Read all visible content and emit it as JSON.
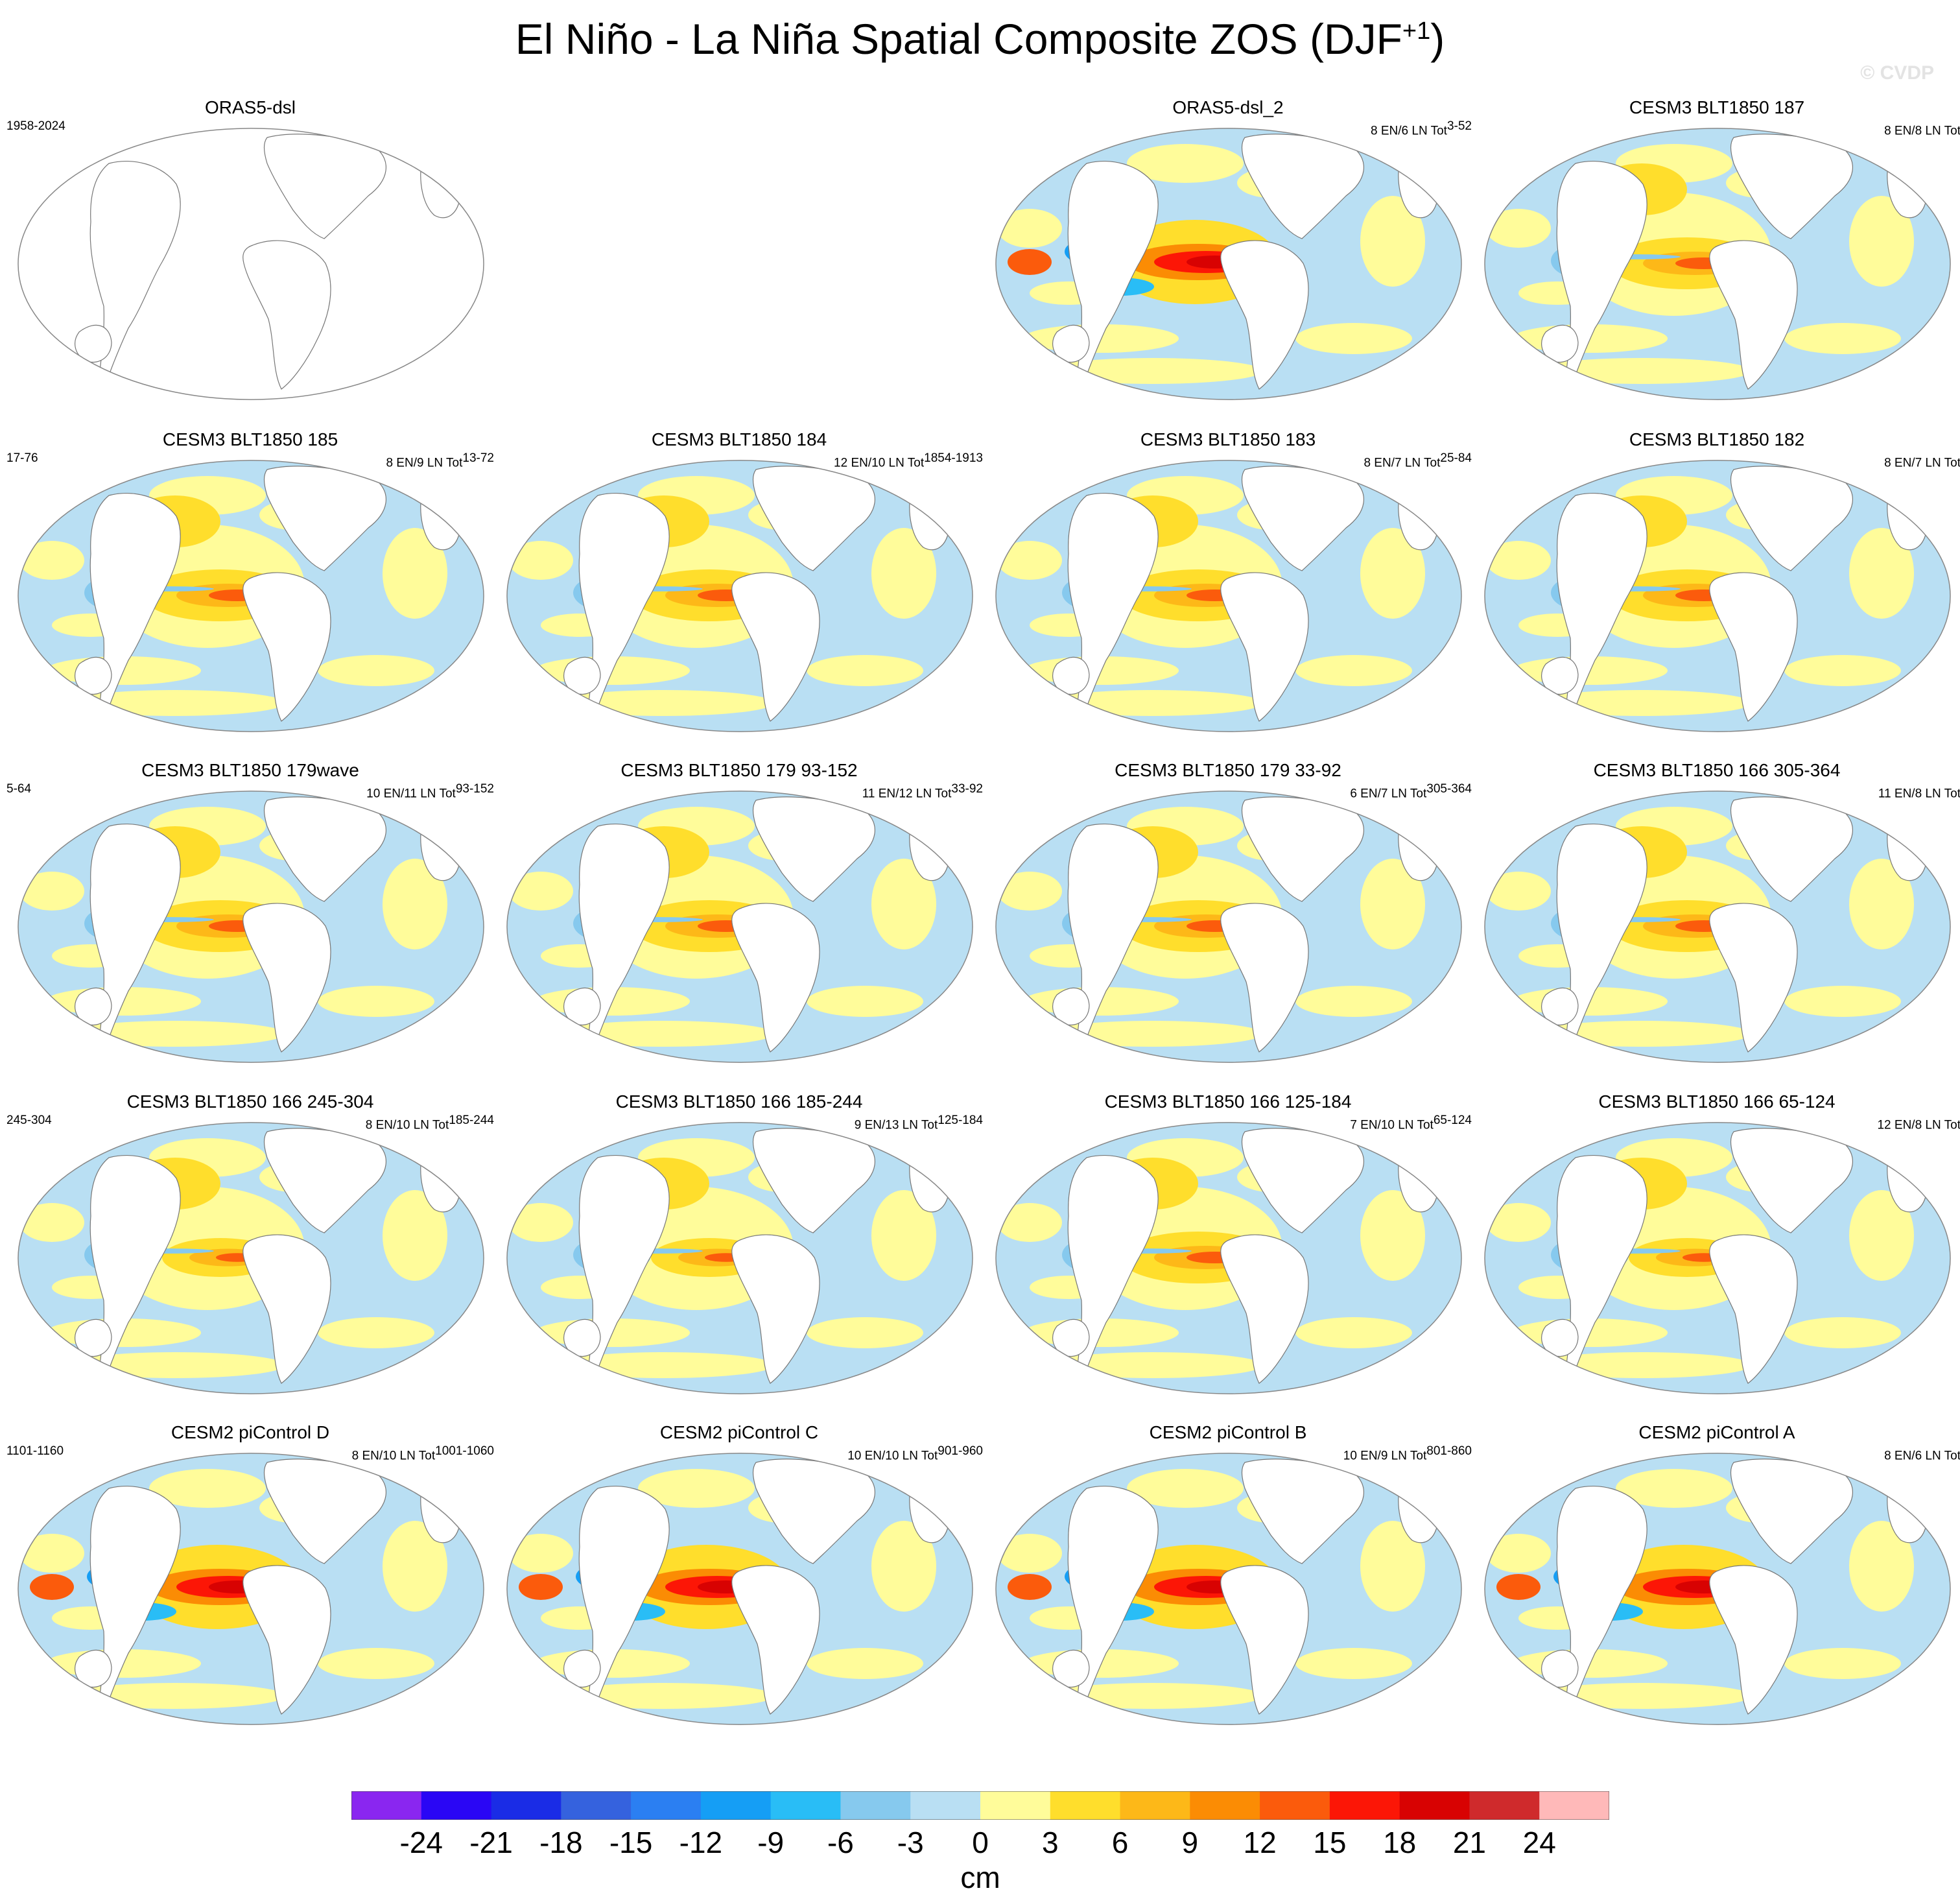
{
  "title": "El Niño - La Niña Spatial Composite ZOS (DJF",
  "title_sup": "+1",
  "title_end": ")",
  "watermark": "© CVDP",
  "panels": [
    {
      "title": "ORAS5-dsl",
      "left": "1958-2024",
      "right_a": "",
      "right_b": "",
      "row": 0,
      "col": 0,
      "pattern": "blank"
    },
    {
      "title": "ORAS5-dsl_2",
      "left": "",
      "right_a": "8 EN/6 LN Tot",
      "right_b": "3-52",
      "row": 0,
      "col": 2,
      "pattern": "strong"
    },
    {
      "title": "CESM3 BLT1850 187",
      "left": "",
      "right_a": "8 EN/8 LN Tot",
      "right_b": "",
      "row": 0,
      "col": 3,
      "pattern": "medium"
    },
    {
      "title": "CESM3 BLT1850 185",
      "left": "17-76",
      "right_a": "8 EN/9 LN Tot",
      "right_b": "13-72",
      "row": 1,
      "col": 0,
      "pattern": "medium"
    },
    {
      "title": "CESM3 BLT1850 184",
      "left": "",
      "right_a": "12 EN/10 LN Tot",
      "right_b": "1854-1913",
      "row": 1,
      "col": 1,
      "pattern": "medium"
    },
    {
      "title": "CESM3 BLT1850 183",
      "left": "",
      "right_a": "8 EN/7 LN Tot",
      "right_b": "25-84",
      "row": 1,
      "col": 2,
      "pattern": "medium"
    },
    {
      "title": "CESM3 BLT1850 182",
      "left": "",
      "right_a": "8 EN/7 LN Tot",
      "right_b": "",
      "row": 1,
      "col": 3,
      "pattern": "medium"
    },
    {
      "title": "CESM3 BLT1850 179wave",
      "left": "5-64",
      "right_a": "10 EN/11 LN Tot",
      "right_b": "93-152",
      "row": 2,
      "col": 0,
      "pattern": "medium"
    },
    {
      "title": "CESM3 BLT1850 179 93-152",
      "left": "",
      "right_a": "11 EN/12 LN Tot",
      "right_b": "33-92",
      "row": 2,
      "col": 1,
      "pattern": "medium"
    },
    {
      "title": "CESM3 BLT1850 179 33-92",
      "left": "",
      "right_a": "6 EN/7 LN Tot",
      "right_b": "305-364",
      "row": 2,
      "col": 2,
      "pattern": "medium"
    },
    {
      "title": "CESM3 BLT1850 166 305-364",
      "left": "",
      "right_a": "11 EN/8 LN Tot",
      "right_b": "",
      "row": 2,
      "col": 3,
      "pattern": "medium"
    },
    {
      "title": "CESM3 BLT1850 166 245-304",
      "left": "245-304",
      "right_a": "8 EN/10 LN Tot",
      "right_b": "185-244",
      "row": 3,
      "col": 0,
      "pattern": "weak"
    },
    {
      "title": "CESM3 BLT1850 166 185-244",
      "left": "",
      "right_a": "9 EN/13 LN Tot",
      "right_b": "125-184",
      "row": 3,
      "col": 1,
      "pattern": "weak"
    },
    {
      "title": "CESM3 BLT1850 166 125-184",
      "left": "",
      "right_a": "7 EN/10 LN Tot",
      "right_b": "65-124",
      "row": 3,
      "col": 2,
      "pattern": "medium"
    },
    {
      "title": "CESM3 BLT1850 166 65-124",
      "left": "",
      "right_a": "12 EN/8 LN Tot",
      "right_b": "",
      "row": 3,
      "col": 3,
      "pattern": "weak"
    },
    {
      "title": "CESM2 piControl D",
      "left": "1101-1160",
      "right_a": "8 EN/10 LN Tot",
      "right_b": "1001-1060",
      "row": 4,
      "col": 0,
      "pattern": "strong"
    },
    {
      "title": "CESM2 piControl C",
      "left": "",
      "right_a": "10 EN/10 LN Tot",
      "right_b": "901-960",
      "row": 4,
      "col": 1,
      "pattern": "strong"
    },
    {
      "title": "CESM2 piControl B",
      "left": "",
      "right_a": "10 EN/9 LN Tot",
      "right_b": "801-860",
      "row": 4,
      "col": 2,
      "pattern": "strong"
    },
    {
      "title": "CESM2 piControl A",
      "left": "",
      "right_a": "8 EN/6 LN Tot",
      "right_b": "",
      "row": 4,
      "col": 3,
      "pattern": "strong"
    }
  ],
  "colorbar": {
    "colors": [
      "#8a26f0",
      "#2a06f5",
      "#1a2ce6",
      "#3562de",
      "#2b7ff2",
      "#159ef5",
      "#29bdf6",
      "#86c9ee",
      "#b9dff3",
      "#fffc9a",
      "#ffde2c",
      "#fdb818",
      "#fb8c04",
      "#fb5b0c",
      "#fc1606",
      "#d80202",
      "#cf2a2c",
      "#ffb9b9"
    ],
    "labels": [
      "-24",
      "-21",
      "-18",
      "-15",
      "-12",
      "-9",
      "-6",
      "-3",
      "0",
      "3",
      "6",
      "9",
      "12",
      "15",
      "18",
      "21",
      "24"
    ],
    "units": "cm"
  }
}
